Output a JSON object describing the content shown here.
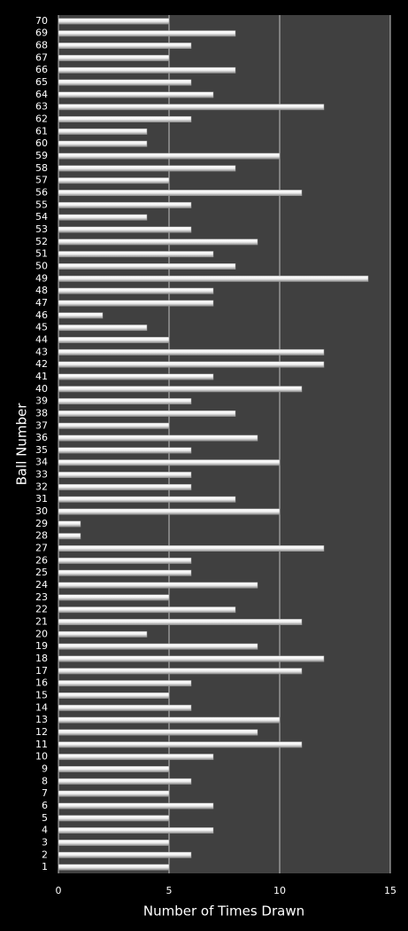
{
  "chart_data": {
    "type": "barh",
    "x_label": "Number of Times Drawn",
    "y_label": "Ball Number",
    "categories": [
      "1",
      "2",
      "3",
      "4",
      "5",
      "6",
      "7",
      "8",
      "9",
      "10",
      "11",
      "12",
      "13",
      "14",
      "15",
      "16",
      "17",
      "18",
      "19",
      "20",
      "21",
      "22",
      "23",
      "24",
      "25",
      "26",
      "27",
      "28",
      "29",
      "30",
      "31",
      "32",
      "33",
      "34",
      "35",
      "36",
      "37",
      "38",
      "39",
      "40",
      "41",
      "42",
      "43",
      "44",
      "45",
      "46",
      "47",
      "48",
      "49",
      "50",
      "51",
      "52",
      "53",
      "54",
      "55",
      "56",
      "57",
      "58",
      "59",
      "60",
      "61",
      "62",
      "63",
      "64",
      "65",
      "66",
      "67",
      "68",
      "69",
      "70"
    ],
    "values": [
      5,
      6,
      5,
      7,
      5,
      7,
      5,
      6,
      5,
      7,
      11,
      9,
      10,
      6,
      5,
      6,
      11,
      12,
      9,
      4,
      11,
      8,
      5,
      9,
      6,
      6,
      12,
      1,
      1,
      10,
      8,
      6,
      6,
      10,
      6,
      9,
      5,
      8,
      6,
      11,
      7,
      12,
      12,
      5,
      4,
      2,
      7,
      7,
      14,
      8,
      7,
      9,
      6,
      4,
      6,
      11,
      5,
      8,
      10,
      4,
      4,
      6,
      12,
      7,
      6,
      8,
      5,
      6,
      8,
      5
    ],
    "color": "#ffffff",
    "xlim": [
      0,
      15
    ],
    "xticks": [
      0,
      5,
      10,
      15
    ],
    "grid": true
  }
}
